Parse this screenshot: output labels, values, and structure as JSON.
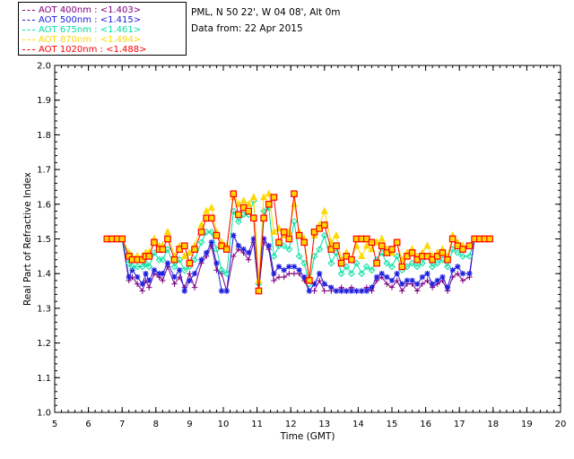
{
  "legend": {
    "items": [
      {
        "label": "AOT  400nm : <1.403>",
        "color": "#800080"
      },
      {
        "label": "AOT  500nm : <1.415>",
        "color": "#1e1ee0"
      },
      {
        "label": "AOT  675nm : <1.461>",
        "color": "#00e0a0"
      },
      {
        "label": "AOT  870nm : <1.494>",
        "color": "#ffd800"
      },
      {
        "label": "AOT 1020nm : <1.488>",
        "color": "#ff0000"
      }
    ]
  },
  "info": {
    "site": "PML, N 50 22', W 04 08', Alt 0m",
    "date": "Data from: 22 Apr 2015"
  },
  "chart_data": {
    "type": "line",
    "title": "",
    "xlabel": "Time (GMT)",
    "ylabel": "Real Part of Refractive Index",
    "xlim": [
      5,
      20
    ],
    "ylim": [
      1.0,
      2.0
    ],
    "xticks": [
      "5",
      "6",
      "7",
      "8",
      "9",
      "10",
      "11",
      "12",
      "13",
      "14",
      "15",
      "16",
      "17",
      "18",
      "19",
      "20"
    ],
    "yticks": [
      "1.0",
      "1.1",
      "1.2",
      "1.3",
      "1.4",
      "1.5",
      "1.6",
      "1.7",
      "1.8",
      "1.9",
      "2.0"
    ],
    "grid": false,
    "x": [
      6.55,
      6.7,
      6.85,
      7.0,
      7.2,
      7.3,
      7.45,
      7.6,
      7.7,
      7.8,
      7.95,
      8.1,
      8.2,
      8.35,
      8.55,
      8.7,
      8.85,
      9.0,
      9.15,
      9.35,
      9.5,
      9.65,
      9.8,
      9.95,
      10.1,
      10.3,
      10.45,
      10.6,
      10.75,
      10.9,
      11.05,
      11.2,
      11.35,
      11.5,
      11.65,
      11.8,
      11.95,
      12.1,
      12.25,
      12.4,
      12.55,
      12.7,
      12.85,
      13.0,
      13.2,
      13.35,
      13.5,
      13.65,
      13.8,
      13.95,
      14.1,
      14.25,
      14.4,
      14.55,
      14.7,
      14.85,
      15.0,
      15.15,
      15.3,
      15.45,
      15.6,
      15.75,
      15.9,
      16.05,
      16.2,
      16.35,
      16.5,
      16.65,
      16.8,
      16.95,
      17.1,
      17.3,
      17.45,
      17.6,
      17.75,
      17.9
    ],
    "series": [
      {
        "name": "AOT  400nm : <1.403>",
        "marker": "plus",
        "values": [
          1.5,
          1.5,
          1.5,
          1.5,
          1.38,
          1.39,
          1.37,
          1.35,
          1.38,
          1.36,
          1.4,
          1.39,
          1.38,
          1.42,
          1.37,
          1.39,
          1.36,
          1.4,
          1.36,
          1.43,
          1.45,
          1.48,
          1.41,
          1.4,
          1.35,
          1.45,
          1.47,
          1.46,
          1.44,
          1.49,
          1.35,
          1.49,
          1.47,
          1.38,
          1.39,
          1.39,
          1.4,
          1.4,
          1.4,
          1.38,
          1.35,
          1.35,
          1.38,
          1.35,
          1.35,
          1.35,
          1.36,
          1.35,
          1.36,
          1.35,
          1.35,
          1.36,
          1.35,
          1.38,
          1.39,
          1.37,
          1.36,
          1.38,
          1.35,
          1.37,
          1.37,
          1.35,
          1.37,
          1.38,
          1.36,
          1.37,
          1.38,
          1.35,
          1.39,
          1.4,
          1.38,
          1.39,
          1.5,
          1.5,
          1.5,
          1.5
        ]
      },
      {
        "name": "AOT  500nm : <1.415>",
        "marker": "star",
        "values": [
          1.5,
          1.5,
          1.5,
          1.5,
          1.39,
          1.41,
          1.39,
          1.37,
          1.4,
          1.38,
          1.41,
          1.4,
          1.4,
          1.43,
          1.39,
          1.41,
          1.35,
          1.38,
          1.4,
          1.44,
          1.46,
          1.49,
          1.43,
          1.35,
          1.35,
          1.51,
          1.48,
          1.47,
          1.46,
          1.5,
          1.35,
          1.5,
          1.48,
          1.4,
          1.42,
          1.41,
          1.42,
          1.42,
          1.41,
          1.39,
          1.35,
          1.37,
          1.4,
          1.37,
          1.36,
          1.35,
          1.35,
          1.35,
          1.35,
          1.35,
          1.35,
          1.35,
          1.36,
          1.39,
          1.4,
          1.39,
          1.38,
          1.4,
          1.37,
          1.38,
          1.38,
          1.37,
          1.39,
          1.4,
          1.37,
          1.38,
          1.39,
          1.36,
          1.41,
          1.42,
          1.4,
          1.4,
          1.5,
          1.5,
          1.5,
          1.5
        ]
      },
      {
        "name": "AOT  675nm : <1.461>",
        "marker": "diamond",
        "values": [
          1.5,
          1.5,
          1.5,
          1.5,
          1.43,
          1.42,
          1.42,
          1.42,
          1.43,
          1.42,
          1.46,
          1.44,
          1.44,
          1.47,
          1.42,
          1.44,
          1.41,
          1.42,
          1.44,
          1.49,
          1.52,
          1.52,
          1.47,
          1.41,
          1.4,
          1.58,
          1.55,
          1.57,
          1.57,
          1.61,
          1.37,
          1.58,
          1.59,
          1.45,
          1.48,
          1.48,
          1.47,
          1.55,
          1.45,
          1.43,
          1.37,
          1.45,
          1.47,
          1.51,
          1.43,
          1.46,
          1.4,
          1.42,
          1.4,
          1.43,
          1.4,
          1.42,
          1.41,
          1.44,
          1.46,
          1.43,
          1.42,
          1.45,
          1.41,
          1.42,
          1.43,
          1.42,
          1.43,
          1.45,
          1.42,
          1.43,
          1.44,
          1.42,
          1.47,
          1.46,
          1.45,
          1.45,
          1.5,
          1.5,
          1.5,
          1.5
        ]
      },
      {
        "name": "AOT  870nm : <1.494>",
        "marker": "triangle",
        "values": [
          1.5,
          1.5,
          1.5,
          1.5,
          1.46,
          1.45,
          1.45,
          1.45,
          1.46,
          1.46,
          1.5,
          1.48,
          1.48,
          1.52,
          1.45,
          1.48,
          1.45,
          1.46,
          1.48,
          1.54,
          1.58,
          1.59,
          1.52,
          1.49,
          1.48,
          1.62,
          1.6,
          1.61,
          1.6,
          1.62,
          1.38,
          1.62,
          1.63,
          1.52,
          1.53,
          1.51,
          1.52,
          1.6,
          1.52,
          1.5,
          1.39,
          1.51,
          1.54,
          1.58,
          1.49,
          1.51,
          1.44,
          1.46,
          1.44,
          1.48,
          1.45,
          1.48,
          1.47,
          1.49,
          1.5,
          1.47,
          1.46,
          1.49,
          1.44,
          1.46,
          1.47,
          1.45,
          1.46,
          1.48,
          1.45,
          1.46,
          1.47,
          1.45,
          1.51,
          1.49,
          1.48,
          1.48,
          1.5,
          1.5,
          1.5,
          1.5
        ]
      },
      {
        "name": "AOT 1020nm : <1.488>",
        "marker": "square",
        "values": [
          1.5,
          1.5,
          1.5,
          1.5,
          1.45,
          1.44,
          1.44,
          1.44,
          1.45,
          1.45,
          1.49,
          1.47,
          1.47,
          1.5,
          1.44,
          1.47,
          1.48,
          1.43,
          1.47,
          1.52,
          1.56,
          1.56,
          1.51,
          1.48,
          1.47,
          1.63,
          1.57,
          1.59,
          1.58,
          1.56,
          1.35,
          1.56,
          1.6,
          1.62,
          1.49,
          1.52,
          1.5,
          1.63,
          1.51,
          1.49,
          1.38,
          1.52,
          1.53,
          1.54,
          1.47,
          1.48,
          1.43,
          1.45,
          1.44,
          1.5,
          1.5,
          1.5,
          1.49,
          1.43,
          1.48,
          1.46,
          1.47,
          1.49,
          1.42,
          1.45,
          1.46,
          1.44,
          1.45,
          1.45,
          1.44,
          1.45,
          1.46,
          1.44,
          1.5,
          1.48,
          1.47,
          1.48,
          1.5,
          1.5,
          1.5,
          1.5
        ]
      }
    ]
  }
}
